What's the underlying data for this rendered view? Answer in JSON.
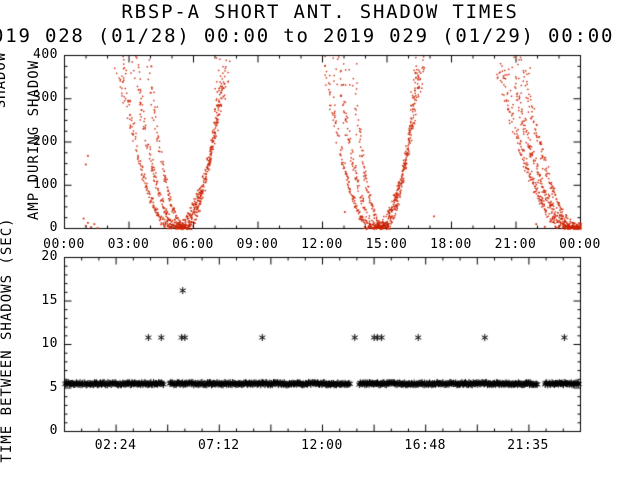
{
  "title": "RBSP-A SHORT ANT. SHADOW TIMES",
  "subtitle": "019 028 (01/28) 00:00 to 2019 029 (01/29) 00:00",
  "colors": {
    "background": "#ffffff",
    "axis": "#000000",
    "top_points": "#cc2200",
    "bottom_points": "#000000"
  },
  "top_panel": {
    "y_axis_label": "AMP DURING SHADOW",
    "y_axis_label_clipped_fragment": "SHADOW",
    "y_tick_labels": [
      "0",
      "100",
      "200",
      "300",
      "400"
    ],
    "y_tick_values": [
      0,
      100,
      200,
      300,
      400
    ],
    "x_tick_labels": [
      "00:00",
      "03:00",
      "06:00",
      "09:00",
      "12:00",
      "15:00",
      "18:00",
      "21:00",
      "00:00"
    ],
    "x_tick_hours": [
      0,
      3,
      6,
      9,
      12,
      15,
      18,
      21,
      24
    ]
  },
  "bottom_panel": {
    "y_axis_label": "TIME BETWEEN SHADOWS (SEC)",
    "y_tick_labels": [
      "0",
      "5",
      "10",
      "15",
      "20"
    ],
    "y_tick_values": [
      0,
      5,
      10,
      15,
      20
    ],
    "x_tick_labels": [
      "02:24",
      "07:12",
      "12:00",
      "16:48",
      "21:35"
    ],
    "x_tick_hours": [
      2.4,
      7.2,
      12.0,
      16.8,
      21.583
    ]
  },
  "chart_data": [
    {
      "type": "scatter",
      "name": "amp-during-shadow",
      "marker": "dot",
      "color": "#cc2200",
      "x_unit": "hours since 2019-028 00:00",
      "xlim": [
        0,
        24
      ],
      "ylim": [
        0,
        400
      ],
      "ylabel": "AMP DURING SHADOW",
      "x_tick_labels": [
        "00:00",
        "03:00",
        "06:00",
        "09:00",
        "12:00",
        "15:00",
        "18:00",
        "21:00",
        "00:00"
      ],
      "description": "Three V-shaped shadow-entry amplitude dips; amplitude falls to 0 at shadow center and rises to 400 (clipped) at edges",
      "shadow_v_curves": [
        {
          "branches": [
            {
              "center_hour": 5.05,
              "half_width_hours": 2.55,
              "peak": 400
            },
            {
              "center_hour": 5.35,
              "half_width_hours": 2.15,
              "peak": 400
            },
            {
              "center_hour": 5.6,
              "half_width_hours": 1.75,
              "peak": 400
            }
          ]
        },
        {
          "branches": [
            {
              "center_hour": 14.35,
              "half_width_hours": 2.3,
              "peak": 400
            },
            {
              "center_hour": 14.6,
              "half_width_hours": 1.95,
              "peak": 400
            },
            {
              "center_hour": 14.85,
              "half_width_hours": 1.6,
              "peak": 400
            }
          ]
        },
        {
          "branches": [
            {
              "center_hour": 23.45,
              "half_width_hours": 3.3,
              "peak": 400
            },
            {
              "center_hour": 23.7,
              "half_width_hours": 3.0,
              "peak": 400
            },
            {
              "center_hour": 23.95,
              "half_width_hours": 2.7,
              "peak": 400
            }
          ]
        }
      ],
      "sparse_points": [
        [
          0.85,
          25
        ],
        [
          0.95,
          8
        ],
        [
          1.05,
          15
        ],
        [
          1.2,
          5
        ],
        [
          1.35,
          12
        ],
        [
          1.5,
          3
        ],
        [
          0.95,
          150
        ],
        [
          1.05,
          170
        ],
        [
          13.0,
          40
        ],
        [
          17.15,
          30
        ],
        [
          21.9,
          12
        ],
        [
          22.3,
          6
        ],
        [
          22.55,
          18
        ]
      ]
    },
    {
      "type": "scatter",
      "name": "time-between-shadows",
      "marker": "asterisk",
      "color": "#000000",
      "x_unit": "hours since 2019-028 00:00",
      "xlim": [
        0,
        24
      ],
      "ylim": [
        0,
        20
      ],
      "ylabel": "TIME BETWEEN SHADOWS (SEC)",
      "x_tick_labels": [
        "02:24",
        "07:12",
        "12:00",
        "16:48",
        "21:35"
      ],
      "band_value_sec": 5.5,
      "band_segments_hours": [
        [
          0.05,
          4.6
        ],
        [
          4.9,
          13.3
        ],
        [
          13.7,
          22.0
        ],
        [
          22.35,
          23.95
        ]
      ],
      "outlier_points": [
        [
          3.9,
          10.8
        ],
        [
          4.5,
          10.8
        ],
        [
          5.45,
          10.8
        ],
        [
          5.6,
          10.8
        ],
        [
          9.2,
          10.8
        ],
        [
          13.5,
          10.8
        ],
        [
          14.4,
          10.8
        ],
        [
          14.55,
          10.8
        ],
        [
          14.75,
          10.8
        ],
        [
          16.45,
          10.8
        ],
        [
          19.55,
          10.8
        ],
        [
          23.25,
          10.8
        ],
        [
          5.5,
          16.2
        ]
      ]
    }
  ]
}
